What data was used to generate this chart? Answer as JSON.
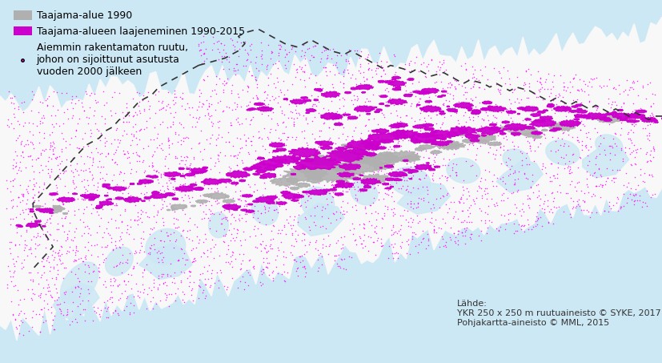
{
  "background_color": "#ffffff",
  "water_color": "#cce8f4",
  "land_color": "#f8f8f8",
  "border_color": "#333333",
  "dot_color": "#ff00ff",
  "magenta_color": "#cc00cc",
  "gray_color": "#b0b0b0",
  "legend_gray_label": "Taajama-alue 1990",
  "legend_magenta_label": "Taajama-alueen laajeneminen 1990-2015",
  "legend_dot_label": "Aiemmin rakentamaton ruutu,\njohon on sijoittunut asutusta\nvuoden 2000 jälkeen",
  "source_text": "Lähde:\nYKR 250 x 250 m ruutuaineisto © SYKE, 2017\nPohjakartta-aineisto © MML, 2015",
  "font_size_legend": 9,
  "font_size_source": 8,
  "fig_width": 8.27,
  "fig_height": 4.53,
  "dpi": 100,
  "coast_inlets_color": "#cce8f4",
  "border_linewidth": 1.2,
  "border_dashes": [
    5,
    4
  ]
}
